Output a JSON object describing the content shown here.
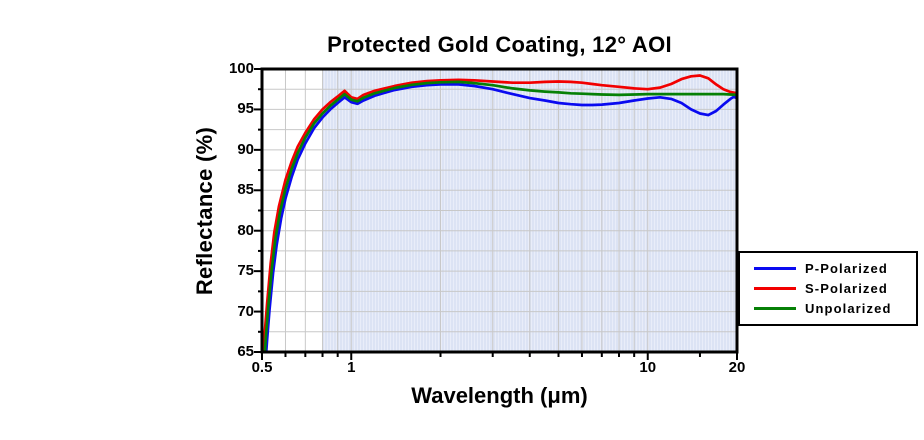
{
  "chart_data": {
    "type": "line",
    "title": "Protected Gold Coating, 12° AOI",
    "xlabel": "Wavelength (μm)",
    "ylabel": "Reflectance (%)",
    "xscale": "log",
    "xlim": [
      0.5,
      20
    ],
    "ylim": [
      65,
      100
    ],
    "xtick_values": [
      0.5,
      1,
      10,
      20
    ],
    "xtick_labels": [
      "0.5",
      "1",
      "10",
      "20"
    ],
    "xtick_minor_values": [
      0.6,
      0.7,
      0.8,
      0.9,
      2,
      3,
      4,
      5,
      6,
      7,
      8,
      9,
      15
    ],
    "xgrid_values": [
      0.6,
      0.7,
      0.8,
      0.9,
      1,
      2,
      3,
      4,
      5,
      6,
      7,
      8,
      9,
      10
    ],
    "ytick_values": [
      65,
      70,
      75,
      80,
      85,
      90,
      95,
      100
    ],
    "ytick_labels": [
      "65",
      "70",
      "75",
      "80",
      "85",
      "90",
      "95",
      "100"
    ],
    "ygrid_step": 2.5,
    "grid_color": "#c8c8c8",
    "frame_color": "#000000",
    "highlight_band": {
      "x_from": 0.8,
      "x_to": 20,
      "fill": "#dce3f4",
      "stripe": "#e9edf9"
    },
    "legend_position": "center-right",
    "series": [
      {
        "name": "P-Polarized",
        "color": "#0a0af0",
        "points": [
          [
            0.512,
            63
          ],
          [
            0.52,
            66.5
          ],
          [
            0.53,
            70.2
          ],
          [
            0.545,
            74.8
          ],
          [
            0.56,
            78.2
          ],
          [
            0.58,
            81.5
          ],
          [
            0.6,
            84.0
          ],
          [
            0.63,
            86.7
          ],
          [
            0.66,
            88.8
          ],
          [
            0.7,
            90.8
          ],
          [
            0.75,
            92.7
          ],
          [
            0.8,
            94.0
          ],
          [
            0.85,
            95.0
          ],
          [
            0.9,
            95.8
          ],
          [
            0.95,
            96.5
          ],
          [
            1.0,
            95.9
          ],
          [
            1.05,
            95.7
          ],
          [
            1.1,
            96.1
          ],
          [
            1.2,
            96.7
          ],
          [
            1.4,
            97.4
          ],
          [
            1.6,
            97.8
          ],
          [
            1.8,
            98.0
          ],
          [
            2.0,
            98.1
          ],
          [
            2.3,
            98.1
          ],
          [
            2.6,
            97.9
          ],
          [
            3.0,
            97.5
          ],
          [
            3.5,
            96.9
          ],
          [
            4.0,
            96.4
          ],
          [
            4.5,
            96.1
          ],
          [
            5.0,
            95.8
          ],
          [
            5.5,
            95.65
          ],
          [
            6.0,
            95.55
          ],
          [
            6.5,
            95.55
          ],
          [
            7.0,
            95.6
          ],
          [
            8.0,
            95.8
          ],
          [
            9.0,
            96.1
          ],
          [
            10.0,
            96.35
          ],
          [
            11.0,
            96.5
          ],
          [
            12.0,
            96.3
          ],
          [
            13.0,
            95.8
          ],
          [
            14.0,
            95.0
          ],
          [
            15.0,
            94.5
          ],
          [
            16.0,
            94.3
          ],
          [
            17.0,
            94.8
          ],
          [
            18.0,
            95.6
          ],
          [
            19.0,
            96.3
          ],
          [
            19.5,
            96.55
          ],
          [
            20.0,
            96.4
          ]
        ]
      },
      {
        "name": "S-Polarized",
        "color": "#f20000",
        "points": [
          [
            0.503,
            63
          ],
          [
            0.51,
            67
          ],
          [
            0.52,
            71
          ],
          [
            0.535,
            76
          ],
          [
            0.55,
            79.8
          ],
          [
            0.57,
            83
          ],
          [
            0.6,
            86.3
          ],
          [
            0.63,
            88.6
          ],
          [
            0.66,
            90.4
          ],
          [
            0.7,
            92.1
          ],
          [
            0.75,
            93.8
          ],
          [
            0.8,
            95.0
          ],
          [
            0.85,
            95.9
          ],
          [
            0.9,
            96.6
          ],
          [
            0.95,
            97.3
          ],
          [
            1.0,
            96.5
          ],
          [
            1.05,
            96.3
          ],
          [
            1.1,
            96.8
          ],
          [
            1.2,
            97.3
          ],
          [
            1.4,
            97.9
          ],
          [
            1.6,
            98.3
          ],
          [
            1.8,
            98.5
          ],
          [
            2.0,
            98.6
          ],
          [
            2.3,
            98.65
          ],
          [
            2.6,
            98.6
          ],
          [
            3.0,
            98.45
          ],
          [
            3.5,
            98.3
          ],
          [
            4.0,
            98.3
          ],
          [
            4.5,
            98.4
          ],
          [
            5.0,
            98.45
          ],
          [
            5.5,
            98.4
          ],
          [
            6.0,
            98.3
          ],
          [
            6.5,
            98.15
          ],
          [
            7.0,
            98.0
          ],
          [
            8.0,
            97.8
          ],
          [
            9.0,
            97.6
          ],
          [
            10.0,
            97.5
          ],
          [
            11.0,
            97.7
          ],
          [
            12.0,
            98.15
          ],
          [
            13.0,
            98.75
          ],
          [
            14.0,
            99.1
          ],
          [
            15.0,
            99.2
          ],
          [
            16.0,
            98.85
          ],
          [
            17.0,
            98.1
          ],
          [
            18.0,
            97.5
          ],
          [
            19.0,
            97.15
          ],
          [
            20.0,
            97.0
          ]
        ]
      },
      {
        "name": "Unpolarized",
        "color": "#068006",
        "points": [
          [
            0.508,
            63
          ],
          [
            0.515,
            66.8
          ],
          [
            0.525,
            70.6
          ],
          [
            0.54,
            75.4
          ],
          [
            0.555,
            79
          ],
          [
            0.575,
            82.3
          ],
          [
            0.6,
            85.2
          ],
          [
            0.63,
            87.7
          ],
          [
            0.66,
            89.6
          ],
          [
            0.7,
            91.5
          ],
          [
            0.75,
            93.3
          ],
          [
            0.8,
            94.5
          ],
          [
            0.85,
            95.45
          ],
          [
            0.9,
            96.2
          ],
          [
            0.95,
            96.9
          ],
          [
            1.0,
            96.2
          ],
          [
            1.05,
            96.0
          ],
          [
            1.1,
            96.45
          ],
          [
            1.2,
            97.0
          ],
          [
            1.4,
            97.65
          ],
          [
            1.6,
            98.05
          ],
          [
            1.8,
            98.25
          ],
          [
            2.0,
            98.35
          ],
          [
            2.3,
            98.4
          ],
          [
            2.6,
            98.25
          ],
          [
            3.0,
            98.0
          ],
          [
            3.5,
            97.6
          ],
          [
            4.0,
            97.35
          ],
          [
            4.5,
            97.2
          ],
          [
            5.0,
            97.1
          ],
          [
            5.5,
            97.0
          ],
          [
            6.0,
            96.95
          ],
          [
            6.5,
            96.9
          ],
          [
            7.0,
            96.85
          ],
          [
            8.0,
            96.8
          ],
          [
            9.0,
            96.85
          ],
          [
            10.0,
            96.9
          ],
          [
            12.0,
            96.9
          ],
          [
            14.0,
            96.9
          ],
          [
            16.0,
            96.9
          ],
          [
            18.0,
            96.9
          ],
          [
            19.0,
            96.85
          ],
          [
            20.0,
            96.8
          ]
        ]
      }
    ]
  }
}
